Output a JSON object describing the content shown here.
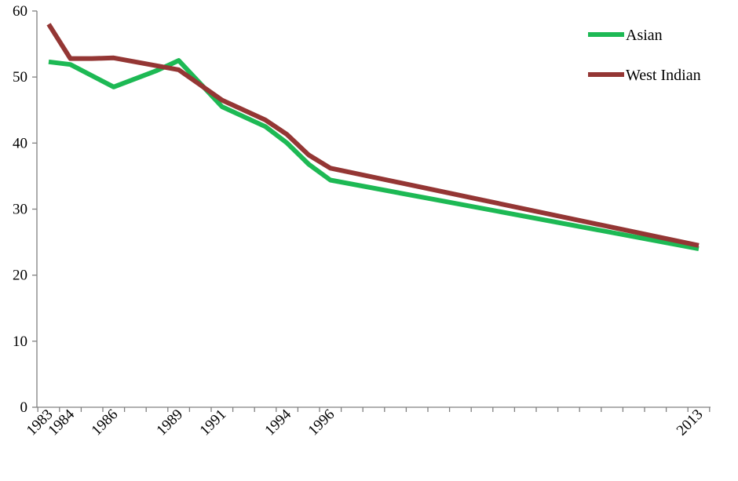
{
  "chart_data": {
    "type": "line",
    "title": "",
    "xlabel": "",
    "ylabel": "",
    "x_ticks_shown": [
      "1983",
      "1984",
      "1986",
      "1989",
      "1991",
      "1994",
      "1996",
      "2013"
    ],
    "ylim": [
      0,
      60
    ],
    "y_ticks": [
      0,
      10,
      20,
      30,
      40,
      50,
      60
    ],
    "grid": false,
    "legend_position": "top-right",
    "series": [
      {
        "name": "Asian",
        "color": "#1db954",
        "points": [
          {
            "x": 1983,
            "y": 52.3
          },
          {
            "x": 1984,
            "y": 51.9
          },
          {
            "x": 1986,
            "y": 48.5
          },
          {
            "x": 1988,
            "y": 51.0
          },
          {
            "x": 1989,
            "y": 52.5
          },
          {
            "x": 1991,
            "y": 45.5
          },
          {
            "x": 1993,
            "y": 42.5
          },
          {
            "x": 1994,
            "y": 40.0
          },
          {
            "x": 1995,
            "y": 36.8
          },
          {
            "x": 1996,
            "y": 34.4
          },
          {
            "x": 2013,
            "y": 24.0
          }
        ]
      },
      {
        "name": "West Indian",
        "color": "#943634",
        "points": [
          {
            "x": 1983,
            "y": 58.0
          },
          {
            "x": 1984,
            "y": 52.8
          },
          {
            "x": 1985,
            "y": 52.8
          },
          {
            "x": 1986,
            "y": 52.9
          },
          {
            "x": 1989,
            "y": 51.1
          },
          {
            "x": 1991,
            "y": 46.5
          },
          {
            "x": 1993,
            "y": 43.5
          },
          {
            "x": 1994,
            "y": 41.3
          },
          {
            "x": 1995,
            "y": 38.2
          },
          {
            "x": 1996,
            "y": 36.2
          },
          {
            "x": 2013,
            "y": 24.5
          }
        ]
      }
    ]
  }
}
